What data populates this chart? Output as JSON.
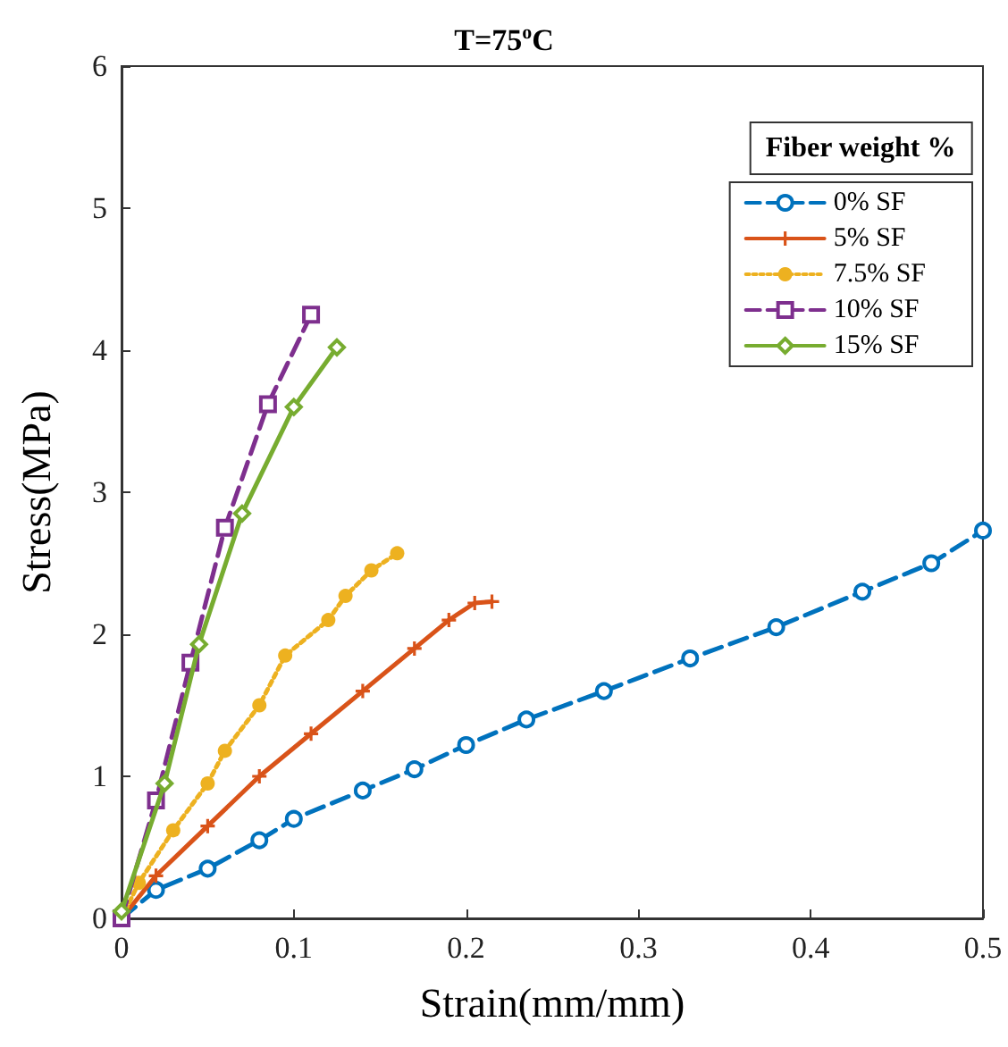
{
  "chart_data": {
    "type": "line",
    "title": "T=75$^{o}$C",
    "xlabel": "Strain(mm/mm)",
    "ylabel": "Stress(MPa)",
    "legend_title": "Fiber weight %",
    "legend": "top right",
    "grid": false,
    "xlim": [
      0,
      0.5
    ],
    "xticks": [
      0,
      0.1,
      0.2,
      0.3,
      0.4,
      0.5
    ],
    "ylim": [
      0,
      6
    ],
    "yticks": [
      0,
      1,
      2,
      3,
      4,
      5,
      6
    ],
    "series": [
      {
        "name": "0% SF",
        "color": "#0072bd",
        "marker": "circle",
        "line_style": "dashed",
        "x": [
          0,
          0.02,
          0.05,
          0.08,
          0.1,
          0.14,
          0.17,
          0.2,
          0.235,
          0.28,
          0.33,
          0.38,
          0.43,
          0.47,
          0.5
        ],
        "values": [
          0,
          0.2,
          0.35,
          0.55,
          0.7,
          0.9,
          1.05,
          1.22,
          1.4,
          1.6,
          1.83,
          2.05,
          2.3,
          2.5,
          2.73
        ]
      },
      {
        "name": "5% SF",
        "color": "#d95319",
        "marker": "cross",
        "line_style": "solid",
        "x": [
          0,
          0.02,
          0.05,
          0.08,
          0.11,
          0.14,
          0.17,
          0.19,
          0.205,
          0.215
        ],
        "values": [
          0,
          0.3,
          0.65,
          1.0,
          1.3,
          1.6,
          1.9,
          2.1,
          2.22,
          2.23
        ]
      },
      {
        "name": "7.5% SF",
        "color": "#edb120",
        "marker": "circle",
        "line_style": "dotted",
        "x": [
          0,
          0.01,
          0.03,
          0.05,
          0.06,
          0.08,
          0.095,
          0.12,
          0.13,
          0.145,
          0.16
        ],
        "values": [
          0,
          0.25,
          0.62,
          0.95,
          1.18,
          1.5,
          1.85,
          2.1,
          2.27,
          2.45,
          2.57
        ]
      },
      {
        "name": "10% SF",
        "color": "#7e2f8e",
        "marker": "square",
        "line_style": "dashed",
        "x": [
          0,
          0.02,
          0.04,
          0.06,
          0.085,
          0.11
        ],
        "values": [
          0,
          0.83,
          1.8,
          2.75,
          3.62,
          4.25
        ]
      },
      {
        "name": "15% SF",
        "color": "#77ac30",
        "marker": "diamond",
        "line_style": "solid",
        "x": [
          0,
          0.025,
          0.045,
          0.07,
          0.1,
          0.125
        ],
        "values": [
          0.05,
          0.95,
          1.93,
          2.85,
          3.6,
          4.02
        ]
      }
    ]
  }
}
